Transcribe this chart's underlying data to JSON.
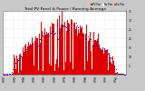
{
  "title": "Total PV Panel & Power / Running Average",
  "bg_color": "#c8c8c8",
  "plot_bg": "#ffffff",
  "bar_color": "#dd0000",
  "avg_color": "#0000cc",
  "y_max": 35,
  "y_min": 0,
  "n_points": 365,
  "title_fontsize": 3.2,
  "tick_fontsize": 2.2,
  "legend_fontsize": 2.0,
  "grid_color": "#aaaaaa",
  "spine_color": "#666666"
}
